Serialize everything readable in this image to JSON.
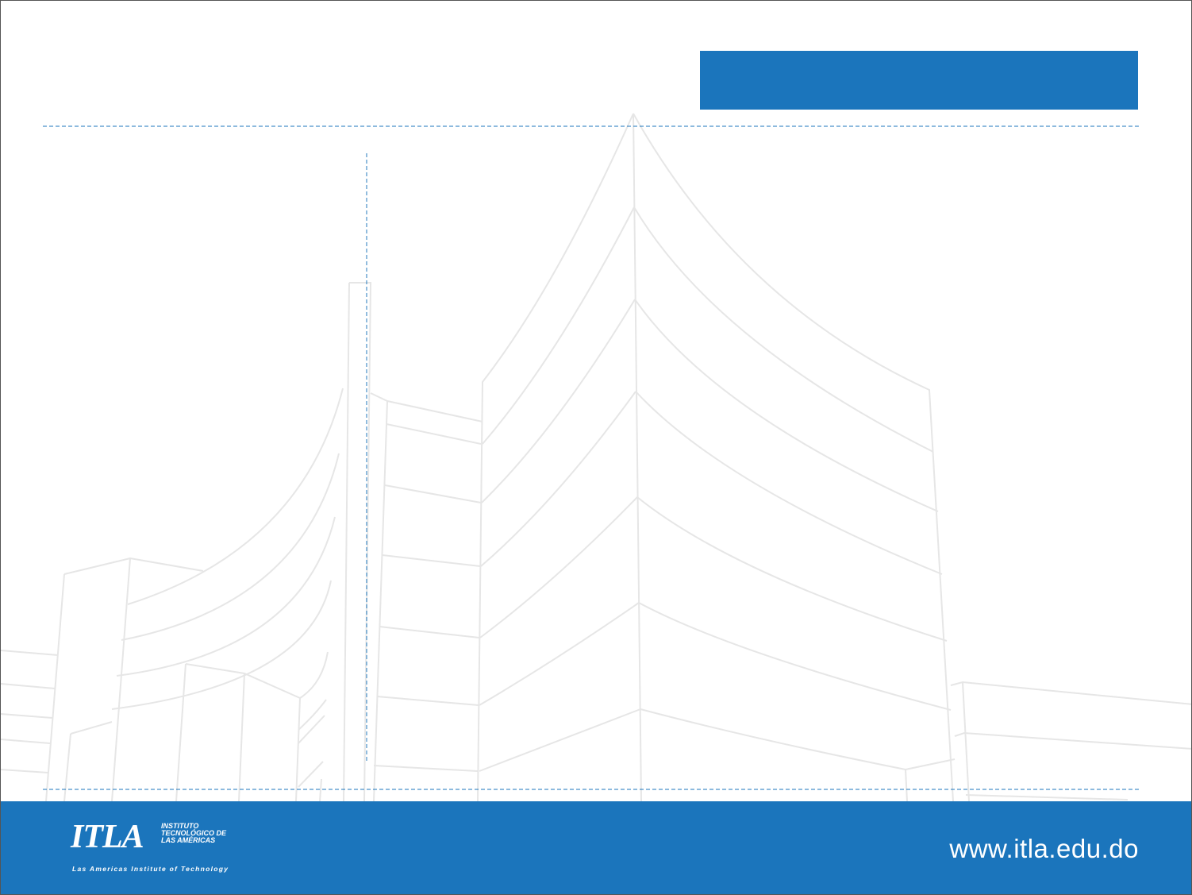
{
  "footer": {
    "website": "www.itla.edu.do",
    "logo": {
      "mark": "ITLA",
      "line1": "INSTITUTO",
      "line2": "TECNOLÓGICO DE",
      "line3": "LAS AMÉRICAS",
      "tagline": "Las Americas Institute of Technology"
    }
  },
  "colors": {
    "brand_blue": "#1b75bc",
    "building_line": "#e6e6e6",
    "guide_line": "#1b75bc"
  }
}
